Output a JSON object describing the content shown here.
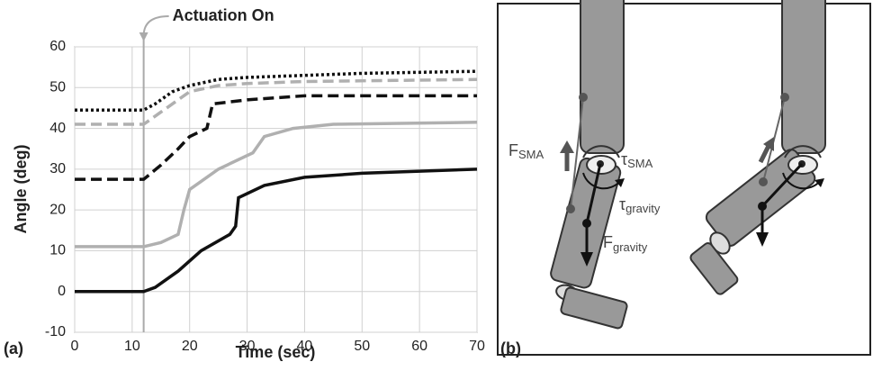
{
  "chart_data": {
    "type": "line",
    "panel_label": "(a)",
    "x_label": "Time (sec)",
    "y_label": "Angle (deg)",
    "xlim": [
      0,
      70
    ],
    "ylim": [
      -10,
      60
    ],
    "xticks": [
      0,
      10,
      20,
      30,
      40,
      50,
      60,
      70
    ],
    "yticks": [
      -10,
      0,
      10,
      20,
      30,
      40,
      50,
      60
    ],
    "grid": true,
    "annotation": {
      "text": "Actuation On",
      "x": 12
    },
    "series": [
      {
        "color": "#111111",
        "dash": "dotted",
        "x": [
          0,
          12,
          14,
          17,
          20,
          25,
          30,
          40,
          50,
          70
        ],
        "values": [
          44.5,
          44.5,
          46,
          49,
          50.5,
          52,
          52.5,
          53,
          53.5,
          54
        ]
      },
      {
        "color": "#b0b0b0",
        "dash": "dashed",
        "x": [
          0,
          12,
          13,
          15,
          18,
          20,
          25,
          30,
          40,
          70
        ],
        "values": [
          41,
          41,
          42,
          44,
          47,
          49,
          50.5,
          51,
          51.5,
          52
        ]
      },
      {
        "color": "#111111",
        "dash": "dashed",
        "x": [
          0,
          12,
          15,
          18,
          20,
          23,
          24,
          30,
          40,
          70
        ],
        "values": [
          27.5,
          27.5,
          31,
          35,
          38,
          40,
          46,
          47,
          48,
          48
        ]
      },
      {
        "color": "#b0b0b0",
        "dash": "solid",
        "x": [
          0,
          12,
          15,
          18,
          19,
          20,
          22,
          25,
          31,
          33,
          38,
          45,
          70
        ],
        "values": [
          11,
          11,
          12,
          14,
          20,
          25,
          27,
          30,
          34,
          38,
          40,
          41,
          41.5
        ]
      },
      {
        "color": "#111111",
        "dash": "solid",
        "x": [
          0,
          12,
          14,
          18,
          22,
          27,
          28,
          28.5,
          33,
          40,
          50,
          70
        ],
        "values": [
          0,
          0,
          1,
          5,
          10,
          14,
          16,
          23,
          26,
          28,
          29,
          30
        ]
      }
    ]
  },
  "diagram": {
    "panel_label": "(b)",
    "labels": [
      {
        "main": "F",
        "sub": "SMA"
      },
      {
        "main": "τ",
        "sub": "SMA"
      },
      {
        "main": "τ",
        "sub": "gravity"
      },
      {
        "main": "F",
        "sub": "gravity"
      }
    ]
  }
}
